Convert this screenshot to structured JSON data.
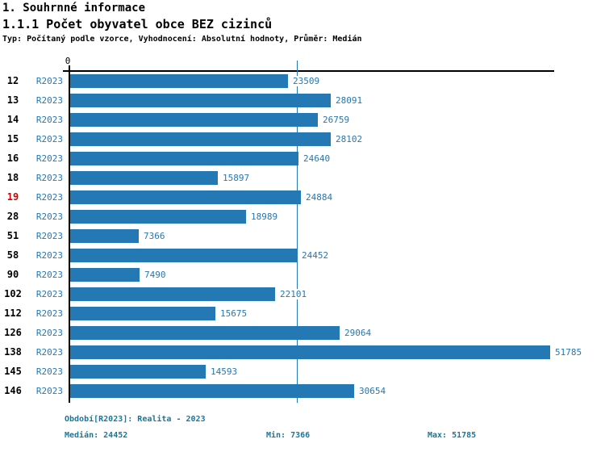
{
  "header": {
    "title": "1. Souhrnné informace",
    "subtitle": "1.1.1 Počet obyvatel obce BEZ cizinců",
    "meta": "Typ: Počítaný podle vzorce, Vyhodnocení: Absolutní hodnoty, Průměr: Medián"
  },
  "chart_data": {
    "type": "bar",
    "orientation": "horizontal",
    "title": "1.1.1 Počet obyvatel obce BEZ cizinců",
    "series_label": "R2023",
    "categories": [
      "12",
      "13",
      "14",
      "15",
      "16",
      "18",
      "19",
      "28",
      "51",
      "58",
      "90",
      "102",
      "112",
      "126",
      "138",
      "145",
      "146"
    ],
    "values": [
      23509,
      28091,
      26759,
      28102,
      24640,
      15897,
      24884,
      18989,
      7366,
      24452,
      7490,
      22101,
      15675,
      29064,
      51785,
      14593,
      30654
    ],
    "highlighted_category": "19",
    "axis_zero_label": "0",
    "xlim": [
      0,
      51785
    ],
    "median_value": 24452,
    "grid": false,
    "legend": "none",
    "colors": {
      "bar": "#2478b4",
      "label_text": "#2478b4",
      "highlight_red": "#d40000",
      "footer_text": "#17789e",
      "axis": "#000000"
    }
  },
  "footer": {
    "period": "Období[R2023]: Realita - 2023",
    "median": "Medián: 24452",
    "min": "Min: 7366",
    "max": "Max: 51785"
  }
}
